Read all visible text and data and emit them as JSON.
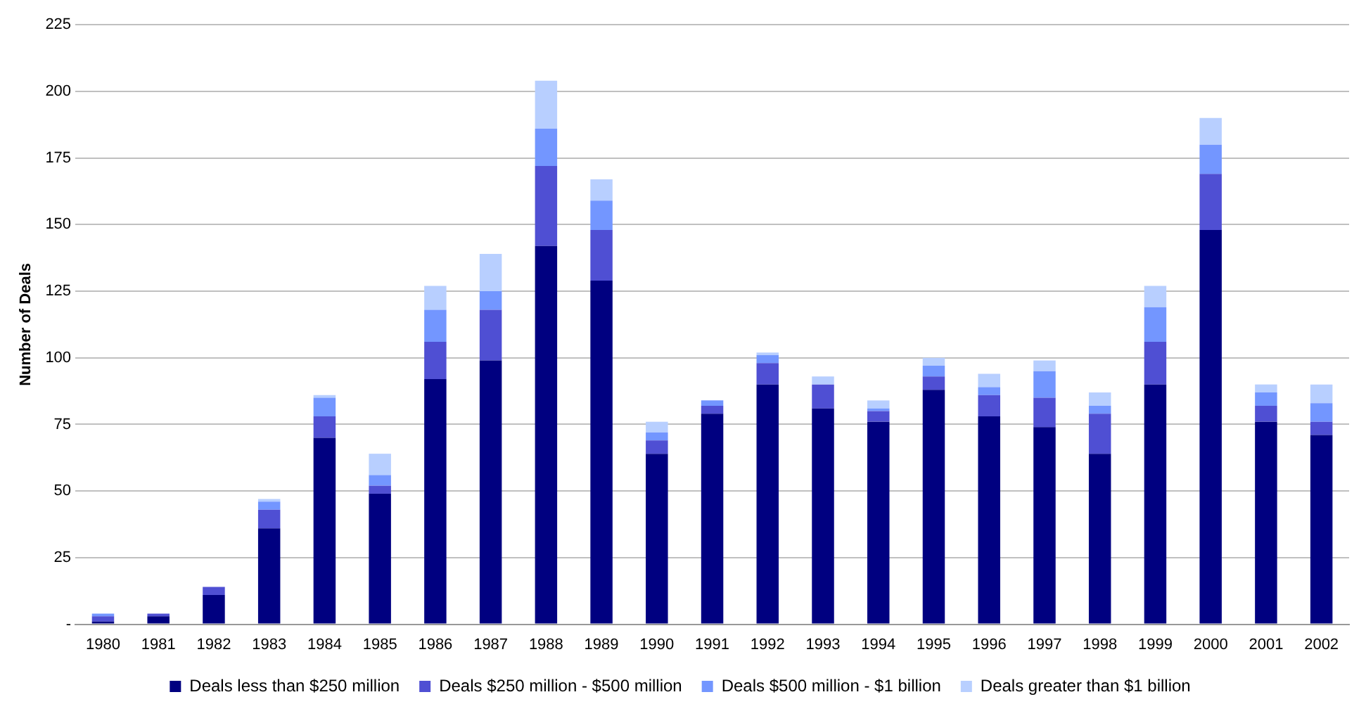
{
  "chart_data": {
    "type": "bar",
    "stacked": true,
    "ylabel": "Number of Deals",
    "categories": [
      "1980",
      "1981",
      "1982",
      "1983",
      "1984",
      "1985",
      "1986",
      "1987",
      "1988",
      "1989",
      "1990",
      "1991",
      "1992",
      "1993",
      "1994",
      "1995",
      "1996",
      "1997",
      "1998",
      "1999",
      "2000",
      "2001",
      "2002"
    ],
    "series": [
      {
        "name": "Deals less than $250 million",
        "color": "#000080",
        "values": [
          1,
          3,
          11,
          36,
          70,
          49,
          92,
          99,
          142,
          129,
          64,
          79,
          90,
          81,
          76,
          88,
          78,
          74,
          64,
          90,
          148,
          76,
          71
        ]
      },
      {
        "name": "Deals $250 million - $500 million",
        "color": "#4f4fd3",
        "values": [
          2,
          1,
          3,
          7,
          8,
          3,
          14,
          19,
          30,
          19,
          5,
          3,
          8,
          9,
          4,
          5,
          8,
          11,
          15,
          16,
          21,
          6,
          5
        ]
      },
      {
        "name": "Deals $500 million - $1 billion",
        "color": "#7396ff",
        "values": [
          1,
          0,
          0,
          3,
          7,
          4,
          12,
          7,
          14,
          11,
          3,
          2,
          3,
          0,
          1,
          4,
          3,
          10,
          3,
          13,
          11,
          5,
          7
        ]
      },
      {
        "name": "Deals greater than $1 billion",
        "color": "#b8cfff",
        "values": [
          0,
          0,
          0,
          1,
          1,
          8,
          9,
          14,
          18,
          8,
          4,
          0,
          1,
          3,
          3,
          3,
          5,
          4,
          5,
          8,
          10,
          3,
          7
        ]
      }
    ],
    "ylim": [
      0,
      225
    ],
    "yticks": [
      {
        "value": 0,
        "label": "-"
      },
      25,
      50,
      75,
      100,
      125,
      150,
      175,
      200,
      225
    ],
    "grid": "y",
    "legend": "bottom"
  }
}
